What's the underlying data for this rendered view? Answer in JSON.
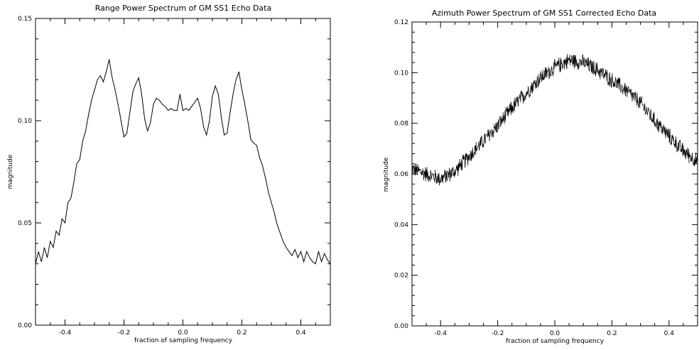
{
  "chart_data": [
    {
      "type": "line",
      "title": "Range Power Spectrum of GM SS1 Echo Data",
      "xlabel": "fraction of sampling frequency",
      "ylabel": "magnitude",
      "xlim": [
        -0.5,
        0.5
      ],
      "ylim": [
        0.0,
        0.15
      ],
      "xticks": [
        -0.4,
        -0.2,
        0.0,
        0.2,
        0.4
      ],
      "xtick_labels": [
        "-0.4",
        "-0.2",
        "0.0",
        "0.2",
        "0.4"
      ],
      "yticks": [
        0.0,
        0.05,
        0.1,
        0.15
      ],
      "ytick_labels": [
        "0.00",
        "0.05",
        "0.10",
        "0.15"
      ],
      "grid": false,
      "color": "#000000",
      "series": [
        {
          "x": [
            -0.5,
            -0.49,
            -0.48,
            -0.47,
            -0.46,
            -0.45,
            -0.44,
            -0.43,
            -0.42,
            -0.41,
            -0.4,
            -0.39,
            -0.38,
            -0.37,
            -0.36,
            -0.35,
            -0.34,
            -0.33,
            -0.32,
            -0.31,
            -0.3,
            -0.29,
            -0.28,
            -0.27,
            -0.26,
            -0.25,
            -0.24,
            -0.23,
            -0.22,
            -0.21,
            -0.2,
            -0.19,
            -0.18,
            -0.17,
            -0.16,
            -0.15,
            -0.14,
            -0.13,
            -0.12,
            -0.11,
            -0.1,
            -0.09,
            -0.08,
            -0.07,
            -0.06,
            -0.05,
            -0.04,
            -0.03,
            -0.02,
            -0.01,
            0.0,
            0.01,
            0.02,
            0.03,
            0.04,
            0.05,
            0.06,
            0.07,
            0.08,
            0.09,
            0.1,
            0.11,
            0.12,
            0.13,
            0.14,
            0.15,
            0.16,
            0.17,
            0.18,
            0.19,
            0.2,
            0.21,
            0.22,
            0.23,
            0.24,
            0.25,
            0.26,
            0.27,
            0.28,
            0.29,
            0.3,
            0.31,
            0.32,
            0.33,
            0.34,
            0.35,
            0.36,
            0.37,
            0.38,
            0.39,
            0.4,
            0.41,
            0.42,
            0.43,
            0.44,
            0.45,
            0.46,
            0.47,
            0.48,
            0.49,
            0.5
          ],
          "y": [
            0.03,
            0.036,
            0.031,
            0.038,
            0.033,
            0.041,
            0.038,
            0.046,
            0.044,
            0.052,
            0.05,
            0.06,
            0.062,
            0.07,
            0.079,
            0.081,
            0.09,
            0.095,
            0.103,
            0.11,
            0.115,
            0.12,
            0.122,
            0.119,
            0.124,
            0.13,
            0.121,
            0.115,
            0.108,
            0.1,
            0.092,
            0.094,
            0.104,
            0.114,
            0.118,
            0.121,
            0.113,
            0.101,
            0.095,
            0.099,
            0.108,
            0.111,
            0.11,
            0.108,
            0.107,
            0.105,
            0.106,
            0.105,
            0.105,
            0.113,
            0.105,
            0.106,
            0.105,
            0.107,
            0.109,
            0.111,
            0.106,
            0.097,
            0.093,
            0.1,
            0.112,
            0.117,
            0.113,
            0.102,
            0.093,
            0.094,
            0.104,
            0.113,
            0.12,
            0.124,
            0.115,
            0.108,
            0.1,
            0.091,
            0.089,
            0.088,
            0.082,
            0.078,
            0.072,
            0.065,
            0.06,
            0.055,
            0.049,
            0.045,
            0.041,
            0.038,
            0.036,
            0.034,
            0.037,
            0.033,
            0.036,
            0.031,
            0.036,
            0.033,
            0.031,
            0.03,
            0.036,
            0.031,
            0.035,
            0.032,
            0.03
          ]
        }
      ]
    },
    {
      "type": "line",
      "title": "Azimuth Power Spectrum of GM SS1 Corrected Echo Data",
      "xlabel": "fraction of sampling frequency",
      "ylabel": "magnitude",
      "xlim": [
        -0.5,
        0.5
      ],
      "ylim": [
        0.0,
        0.12
      ],
      "xticks": [
        -0.4,
        -0.2,
        0.0,
        0.2,
        0.4
      ],
      "xtick_labels": [
        "-0.4",
        "-0.2",
        "0.0",
        "0.2",
        "0.4"
      ],
      "yticks": [
        0.0,
        0.02,
        0.04,
        0.06,
        0.08,
        0.1,
        0.12
      ],
      "ytick_labels": [
        "0.00",
        "0.02",
        "0.04",
        "0.06",
        "0.08",
        "0.10",
        "0.12"
      ],
      "grid": false,
      "color": "#000000",
      "series": [
        {
          "x": [
            -0.5,
            -0.45,
            -0.4,
            -0.35,
            -0.3,
            -0.25,
            -0.2,
            -0.15,
            -0.1,
            -0.05,
            0.0,
            0.05,
            0.1,
            0.15,
            0.2,
            0.25,
            0.3,
            0.35,
            0.4,
            0.45,
            0.5
          ],
          "y": [
            0.062,
            0.06,
            0.058,
            0.061,
            0.067,
            0.073,
            0.079,
            0.086,
            0.092,
            0.098,
            0.102,
            0.105,
            0.104,
            0.101,
            0.097,
            0.093,
            0.088,
            0.081,
            0.075,
            0.069,
            0.065
          ]
        }
      ]
    }
  ]
}
